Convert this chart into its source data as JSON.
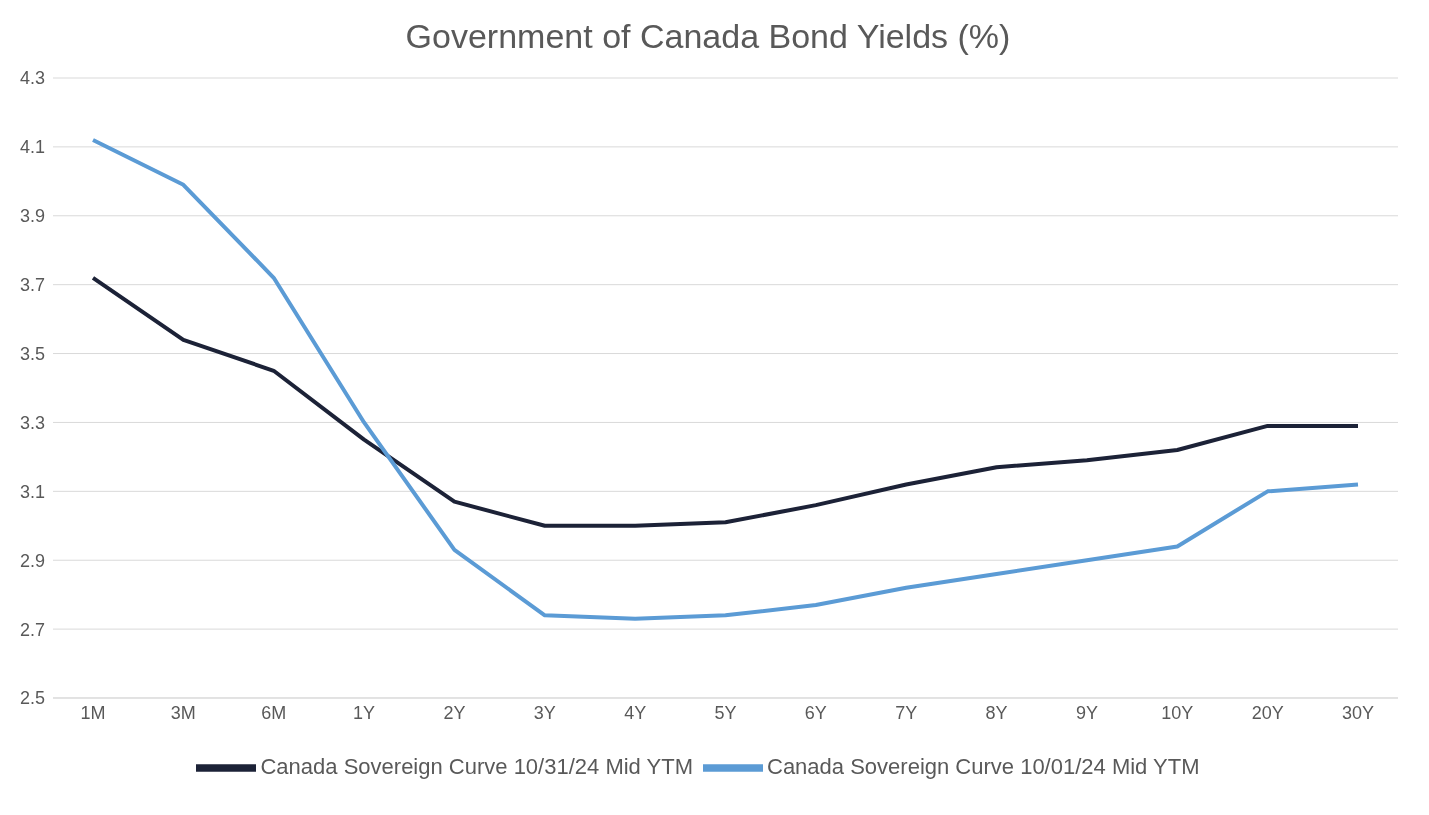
{
  "chart_data": {
    "type": "line",
    "title": "Government of Canada Bond Yields (%)",
    "categories": [
      "1M",
      "3M",
      "6M",
      "1Y",
      "2Y",
      "3Y",
      "4Y",
      "5Y",
      "6Y",
      "7Y",
      "8Y",
      "9Y",
      "10Y",
      "20Y",
      "30Y"
    ],
    "series": [
      {
        "name": "Canada Sovereign Curve 10/31/24 Mid YTM",
        "color": "#1c2237",
        "values": [
          3.72,
          3.54,
          3.45,
          3.25,
          3.07,
          3.0,
          3.0,
          3.01,
          3.06,
          3.12,
          3.17,
          3.19,
          3.22,
          3.29,
          3.29
        ]
      },
      {
        "name": "Canada Sovereign Curve 10/01/24 Mid YTM",
        "color": "#5b9bd5",
        "values": [
          4.12,
          3.99,
          3.72,
          3.3,
          2.93,
          2.74,
          2.73,
          2.74,
          2.77,
          2.82,
          2.86,
          2.9,
          2.94,
          3.1,
          3.12
        ]
      }
    ],
    "ylim": [
      2.5,
      4.3
    ],
    "yticks": [
      2.5,
      2.7,
      2.9,
      3.1,
      3.3,
      3.5,
      3.7,
      3.9,
      4.1,
      4.3
    ],
    "grid": "y",
    "legend": "bottom",
    "marker": "none",
    "line_style": "solid"
  }
}
